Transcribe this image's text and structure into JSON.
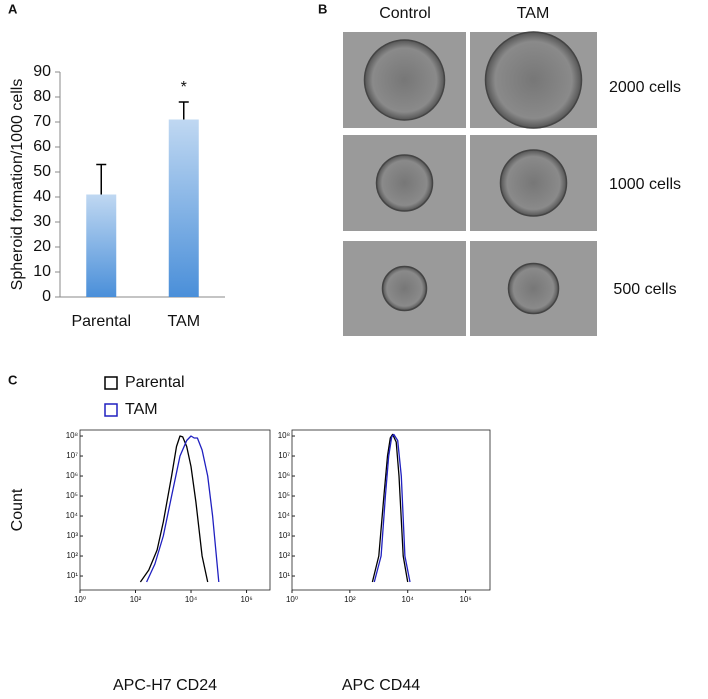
{
  "panels": {
    "a": "A",
    "b": {
      "label": "B",
      "columns": [
        "Control",
        "TAM"
      ],
      "rows": [
        "2000 cells",
        "1000 cells",
        "500 cells"
      ]
    },
    "c": "C"
  },
  "chart_data": [
    {
      "type": "bar",
      "ylabel": "Spheroid formation/1000 cells",
      "categories": [
        "Parental",
        "TAM"
      ],
      "values": [
        41,
        71
      ],
      "errors": [
        12,
        7
      ],
      "annotation": "*",
      "color": "#4a8fd9",
      "ylim": [
        0,
        90
      ],
      "yticks": [
        0,
        10,
        20,
        30,
        40,
        50,
        60,
        70,
        80,
        90
      ],
      "grid": false
    },
    {
      "type": "line",
      "ylabel": "Count",
      "xlabel": "APC-H7 CD24",
      "log_x": true,
      "log_y": true,
      "xlim": [
        1,
        7000000
      ],
      "ylim": [
        2,
        200000000
      ],
      "xticks": [
        {
          "value": 1,
          "label": "10⁰"
        },
        {
          "value": 100,
          "label": "10²"
        },
        {
          "value": 10000,
          "label": "10⁴"
        },
        {
          "value": 1000000,
          "label": "10⁶"
        }
      ],
      "yticks": [
        {
          "value": 10,
          "label": "10¹"
        },
        {
          "value": 100,
          "label": "10²"
        },
        {
          "value": 1000,
          "label": "10³"
        },
        {
          "value": 10000,
          "label": "10⁴"
        },
        {
          "value": 100000,
          "label": "10⁵"
        },
        {
          "value": 1000000,
          "label": "10⁶"
        },
        {
          "value": 10000000,
          "label": "10⁷"
        },
        {
          "value": 100000000,
          "label": "10⁸"
        }
      ],
      "series": [
        {
          "name": "Parental",
          "color": "#000000",
          "x": [
            150,
            300,
            600,
            1000,
            2000,
            3000,
            4000,
            5000,
            7000,
            10000,
            15000,
            25000,
            40000
          ],
          "values": [
            5,
            20,
            200,
            5000,
            1000000,
            30000000,
            100000000,
            90000000,
            30000000,
            3000000,
            50000,
            100,
            5
          ]
        },
        {
          "name": "TAM",
          "color": "#2020c0",
          "x": [
            250,
            500,
            1000,
            2000,
            4000,
            7000,
            10000,
            13000,
            17000,
            25000,
            40000,
            60000,
            100000
          ],
          "values": [
            5,
            40,
            1000,
            100000,
            10000000,
            60000000,
            100000000,
            80000000,
            80000000,
            20000000,
            1000000,
            10000,
            5
          ]
        }
      ]
    },
    {
      "type": "line",
      "xlabel": "APC CD44",
      "log_x": true,
      "log_y": true,
      "xlim": [
        1,
        7000000
      ],
      "ylim": [
        2,
        200000000
      ],
      "xticks": [
        {
          "value": 1,
          "label": "10⁰"
        },
        {
          "value": 100,
          "label": "10²"
        },
        {
          "value": 10000,
          "label": "10⁴"
        },
        {
          "value": 1000000,
          "label": "10⁶"
        }
      ],
      "yticks": [
        {
          "value": 10,
          "label": "10¹"
        },
        {
          "value": 100,
          "label": "10²"
        },
        {
          "value": 1000,
          "label": "10³"
        },
        {
          "value": 10000,
          "label": "10⁴"
        },
        {
          "value": 100000,
          "label": "10⁵"
        },
        {
          "value": 1000000,
          "label": "10⁶"
        },
        {
          "value": 10000000,
          "label": "10⁷"
        },
        {
          "value": 100000000,
          "label": "10⁸"
        }
      ],
      "series": [
        {
          "color": "#000000",
          "x": [
            600,
            1000,
            1500,
            2000,
            2500,
            3000,
            4000,
            5000,
            7000,
            10000
          ],
          "values": [
            5,
            100,
            100000,
            10000000,
            80000000,
            120000000,
            50000000,
            1000000,
            100,
            5
          ]
        },
        {
          "color": "#2020c0",
          "x": [
            700,
            1200,
            1700,
            2200,
            2800,
            3300,
            4500,
            6000,
            8000,
            12000
          ],
          "values": [
            5,
            100,
            100000,
            10000000,
            90000000,
            120000000,
            60000000,
            1000000,
            100,
            5
          ]
        }
      ]
    }
  ]
}
